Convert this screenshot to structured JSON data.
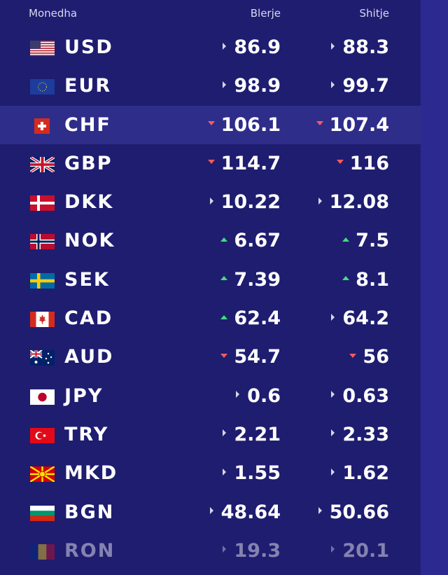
{
  "header": {
    "currency": "Monedha",
    "buy": "Blerje",
    "sell": "Shitje"
  },
  "rows": [
    {
      "code": "USD",
      "buy": "86.9",
      "sell": "88.3",
      "buy_trend": "flat",
      "sell_trend": "flat",
      "flag": "us-flag-icon"
    },
    {
      "code": "EUR",
      "buy": "98.9",
      "sell": "99.7",
      "buy_trend": "flat",
      "sell_trend": "flat",
      "flag": "eu-flag-icon"
    },
    {
      "code": "CHF",
      "buy": "106.1",
      "sell": "107.4",
      "buy_trend": "down",
      "sell_trend": "down",
      "flag": "ch-flag-icon",
      "highlighted": true
    },
    {
      "code": "GBP",
      "buy": "114.7",
      "sell": "116",
      "buy_trend": "down",
      "sell_trend": "down",
      "flag": "gb-flag-icon"
    },
    {
      "code": "DKK",
      "buy": "10.22",
      "sell": "12.08",
      "buy_trend": "flat",
      "sell_trend": "flat",
      "flag": "dk-flag-icon"
    },
    {
      "code": "NOK",
      "buy": "6.67",
      "sell": "7.5",
      "buy_trend": "up",
      "sell_trend": "up",
      "flag": "no-flag-icon"
    },
    {
      "code": "SEK",
      "buy": "7.39",
      "sell": "8.1",
      "buy_trend": "up",
      "sell_trend": "up",
      "flag": "se-flag-icon"
    },
    {
      "code": "CAD",
      "buy": "62.4",
      "sell": "64.2",
      "buy_trend": "up",
      "sell_trend": "flat",
      "flag": "ca-flag-icon"
    },
    {
      "code": "AUD",
      "buy": "54.7",
      "sell": "56",
      "buy_trend": "down",
      "sell_trend": "down",
      "flag": "au-flag-icon"
    },
    {
      "code": "JPY",
      "buy": "0.6",
      "sell": "0.63",
      "buy_trend": "flat",
      "sell_trend": "flat",
      "flag": "jp-flag-icon"
    },
    {
      "code": "TRY",
      "buy": "2.21",
      "sell": "2.33",
      "buy_trend": "flat",
      "sell_trend": "flat",
      "flag": "tr-flag-icon"
    },
    {
      "code": "MKD",
      "buy": "1.55",
      "sell": "1.62",
      "buy_trend": "flat",
      "sell_trend": "flat",
      "flag": "mk-flag-icon"
    },
    {
      "code": "BGN",
      "buy": "48.64",
      "sell": "50.66",
      "buy_trend": "flat",
      "sell_trend": "flat",
      "flag": "bg-flag-icon"
    },
    {
      "code": "RON",
      "buy": "19.3",
      "sell": "20.1",
      "buy_trend": "flat",
      "sell_trend": "flat",
      "flag": "ro-flag-icon",
      "faded": true
    }
  ],
  "colors": {
    "background": "#1f1d70",
    "highlight": "#2f2d8a",
    "up": "#3ee07a",
    "down": "#ff5a5a",
    "flat": "#d6d6ea"
  }
}
